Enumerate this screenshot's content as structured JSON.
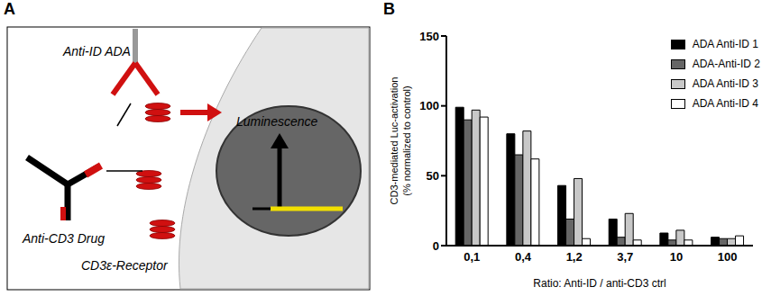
{
  "panel_labels": [
    "A",
    "B"
  ],
  "diagram": {
    "labels": {
      "ada": "Anti-ID ADA",
      "drug": "Anti-CD3 Drug",
      "receptor": "CD3ε-Receptor",
      "readout": "Luminescence"
    }
  },
  "chart_data": {
    "type": "bar",
    "categories": [
      "0,1",
      "0,4",
      "1,2",
      "3,7",
      "10",
      "100"
    ],
    "series": [
      {
        "name": "ADA Anti-ID 1",
        "color": "#000000",
        "values": [
          99,
          80,
          43,
          19,
          9,
          6
        ]
      },
      {
        "name": "ADA-Anti-ID 2",
        "color": "#666666",
        "values": [
          90,
          65,
          19,
          6,
          4,
          5
        ]
      },
      {
        "name": "ADA Anti-ID 3",
        "color": "#c8c8c8",
        "values": [
          97,
          82,
          48,
          23,
          11,
          5
        ]
      },
      {
        "name": "ADA Anti-ID 4",
        "color": "#ffffff",
        "values": [
          92,
          62,
          5,
          4,
          4,
          7
        ]
      }
    ],
    "ylabel": [
      "CD3-mediated Luc-activation",
      "(% normalized to control)"
    ],
    "xlabel": "Ratio: Anti-ID / anti-CD3 ctrl",
    "ylim": [
      0,
      150
    ],
    "yticks": [
      0,
      50,
      100,
      150
    ],
    "legend": "upper right"
  }
}
